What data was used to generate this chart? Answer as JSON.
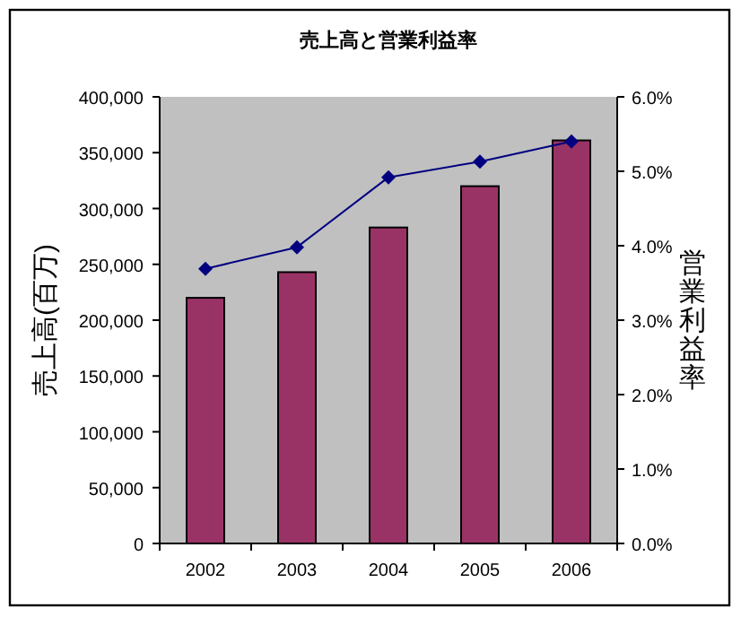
{
  "chart_data": {
    "type": "bar",
    "title": "売上高と営業利益率",
    "ylabel": "売上高(百万)",
    "y2label": "営業利益率",
    "categories": [
      "2002",
      "2003",
      "2004",
      "2005",
      "2006"
    ],
    "series": [
      {
        "axis": "y",
        "color": "#993366",
        "values": [
          220000,
          243000,
          283000,
          320000,
          361000
        ]
      },
      {
        "type": "line",
        "axis": "y2",
        "color": "#000080",
        "marker": "diamond",
        "values": [
          3.69,
          3.98,
          4.92,
          5.13,
          5.4
        ]
      }
    ],
    "ylim": [
      0,
      400000
    ],
    "yticks": [
      0,
      {
        "value": 50000,
        "label": "50,000"
      },
      {
        "value": 100000,
        "label": "100,000"
      },
      {
        "value": 150000,
        "label": "150,000"
      },
      {
        "value": 200000,
        "label": "200,000"
      },
      {
        "value": 250000,
        "label": "250,000"
      },
      {
        "value": 300000,
        "label": "300,000"
      },
      {
        "value": 350000,
        "label": "350,000"
      },
      {
        "value": 400000,
        "label": "400,000"
      }
    ],
    "y2lim": [
      0,
      6
    ],
    "y2ticks": [
      {
        "value": 0,
        "label": "0.0%"
      },
      {
        "value": 1,
        "label": "1.0%"
      },
      {
        "value": 2,
        "label": "2.0%"
      },
      {
        "value": 3,
        "label": "3.0%"
      },
      {
        "value": 4,
        "label": "4.0%"
      },
      {
        "value": 5,
        "label": "5.0%"
      },
      {
        "value": 6,
        "label": "6.0%"
      }
    ]
  }
}
